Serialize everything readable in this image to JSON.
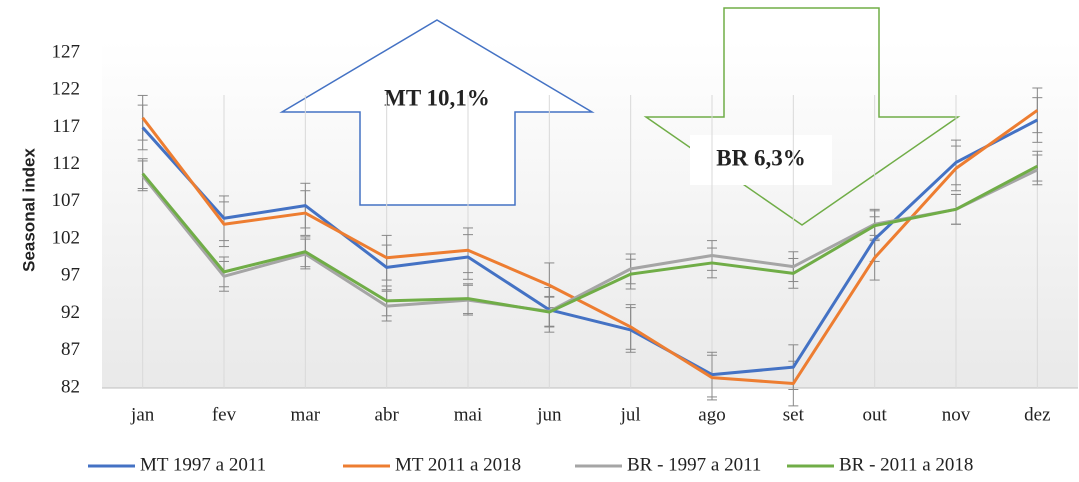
{
  "chart_data": {
    "type": "line",
    "y_label": "Seasonal index",
    "annotations": [
      "MT 10,1%",
      "BR 6,3%"
    ],
    "categories": [
      "jan",
      "fev",
      "mar",
      "abr",
      "mai",
      "jun",
      "jul",
      "ago",
      "set",
      "out",
      "nov",
      "dez"
    ],
    "series": [
      {
        "name": "MT 1997 a 2011",
        "color": "#4472c4",
        "values": [
          117,
          104.8,
          106.5,
          98.2,
          99.6,
          92.5,
          89.8,
          83.8,
          84.8,
          102,
          112.3,
          118
        ],
        "errors": [
          3,
          3,
          3,
          3,
          3,
          3,
          3,
          3,
          3,
          3,
          3,
          3
        ]
      },
      {
        "name": "MT 2011 a 2018",
        "color": "#ed7d31",
        "values": [
          118.3,
          104,
          105.5,
          99.5,
          100.5,
          95.8,
          90.2,
          83.4,
          82.6,
          99.5,
          111.5,
          119.3
        ],
        "errors": [
          3,
          3,
          3,
          3,
          3,
          3,
          3,
          3,
          3,
          3,
          3,
          3
        ]
      },
      {
        "name": "BR - 1997 a 2011",
        "color": "#a5a5a5",
        "values": [
          110.5,
          97,
          100,
          93,
          93.8,
          92.3,
          98,
          99.8,
          98.3,
          104,
          106,
          111.3
        ],
        "errors": [
          2,
          2,
          2,
          2,
          2,
          2,
          2,
          2,
          2,
          2,
          2,
          2
        ]
      },
      {
        "name": "BR - 2011 a 2018",
        "color": "#70ad47",
        "values": [
          110.8,
          97.6,
          100.3,
          93.7,
          94,
          92.2,
          97.3,
          98.8,
          97.4,
          103.8,
          106,
          111.8
        ],
        "errors": [
          2,
          2,
          2,
          2,
          2,
          2,
          2,
          2,
          2,
          2,
          2,
          2
        ]
      }
    ],
    "ylim": [
      82,
      127
    ],
    "yticks": [
      82,
      87,
      92,
      97,
      102,
      107,
      112,
      117,
      122,
      127
    ],
    "legend": "bottom"
  }
}
